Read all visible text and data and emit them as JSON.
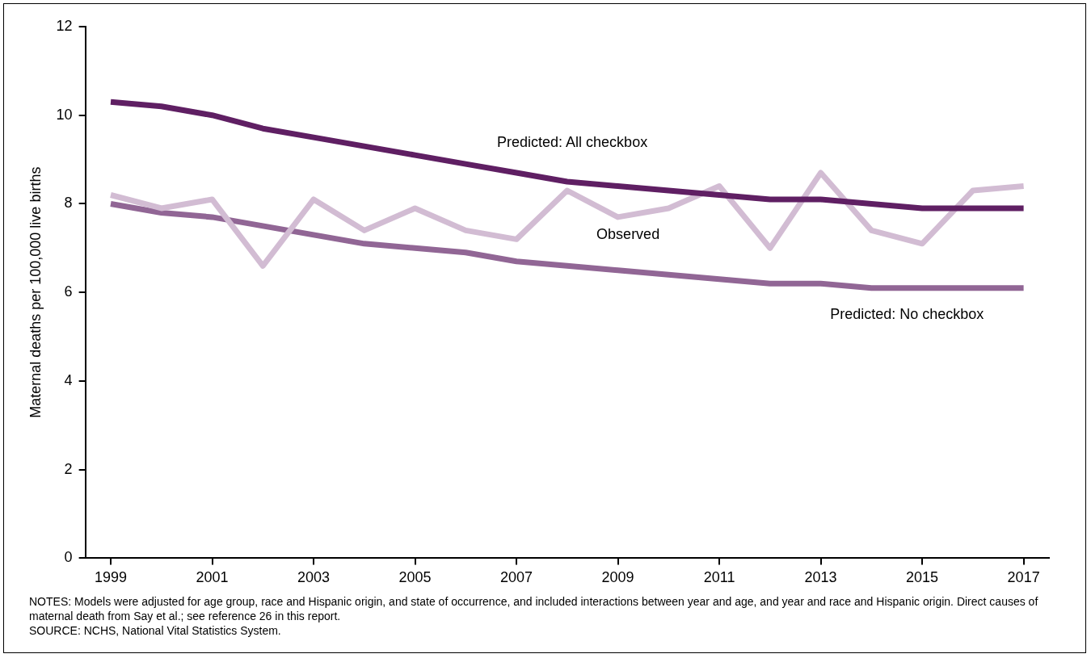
{
  "chart_data": {
    "type": "line",
    "ylabel": "Maternal deaths per 100,000 live births",
    "x": [
      1999,
      2000,
      2001,
      2002,
      2003,
      2004,
      2005,
      2006,
      2007,
      2008,
      2009,
      2010,
      2011,
      2012,
      2013,
      2014,
      2015,
      2016,
      2017
    ],
    "xlim": [
      1998.5,
      2017.5
    ],
    "xticks": [
      1999,
      2001,
      2003,
      2005,
      2007,
      2009,
      2011,
      2013,
      2015,
      2017
    ],
    "ylim": [
      0,
      12
    ],
    "yticks": [
      0,
      2,
      4,
      6,
      8,
      10,
      12
    ],
    "grid": false,
    "legend": false,
    "marker": "none",
    "line_style": "solid",
    "series": [
      {
        "name": "Predicted: All checkbox",
        "color": "#5f1f63",
        "values": [
          10.3,
          10.2,
          10.0,
          9.7,
          9.5,
          9.3,
          9.1,
          8.9,
          8.7,
          8.5,
          8.4,
          8.3,
          8.2,
          8.1,
          8.1,
          8.0,
          7.9,
          7.9,
          7.9
        ]
      },
      {
        "name": "Observed",
        "color": "#d2bcd3",
        "values": [
          8.2,
          7.9,
          8.1,
          6.6,
          8.1,
          7.4,
          7.9,
          7.4,
          7.2,
          8.3,
          7.7,
          7.9,
          8.4,
          7.0,
          8.7,
          7.4,
          7.1,
          8.3,
          8.4
        ]
      },
      {
        "name": "Predicted: No checkbox",
        "color": "#916695",
        "values": [
          8.0,
          7.8,
          7.7,
          7.5,
          7.3,
          7.1,
          7.0,
          6.9,
          6.7,
          6.6,
          6.5,
          6.4,
          6.3,
          6.2,
          6.2,
          6.1,
          6.1,
          6.1,
          6.1
        ]
      }
    ],
    "annotations": [
      "NOTES: Models were adjusted for age group, race and Hispanic origin, and state of occurrence, and included interactions between year and age, and year and race and Hispanic origin. Direct causes of maternal death from Say et al.; see reference 26 in this report.",
      "SOURCE: NCHS, National Vital Statistics System."
    ]
  }
}
